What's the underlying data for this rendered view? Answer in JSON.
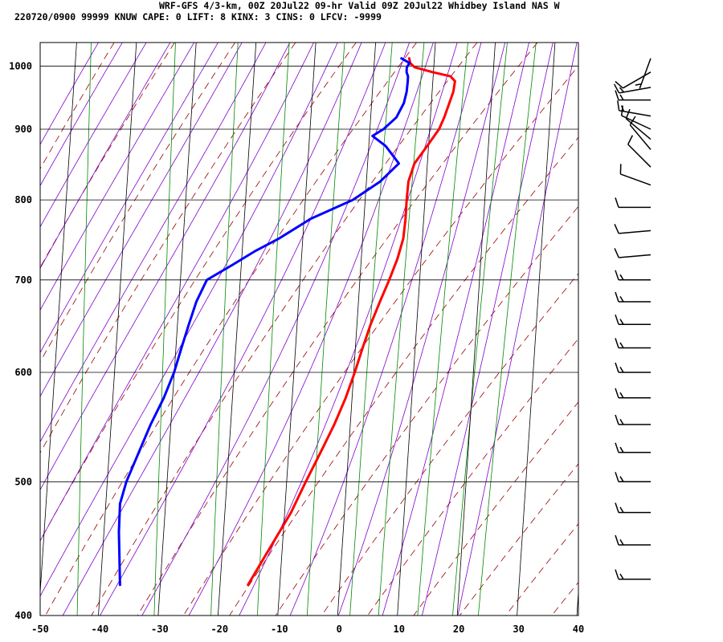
{
  "header": {
    "line1": "WRF-GFS 4/3-km, 00Z 20Jul22 09-hr Valid 09Z 20Jul22 Whidbey Island NAS W",
    "line2": "220720/0900 99999  KNUW    CAPE:     0 LIFT:     8 KINX:     3 CINS:     0 LFCV: -9999"
  },
  "colors": {
    "temperature": "#ff0000",
    "dewpoint": "#0000ff",
    "dry_adiabat": "#990000",
    "moist_adiabat": "#8000cc",
    "mixing_ratio": "#008800",
    "grid": "#000000"
  },
  "chart_data": {
    "type": "line",
    "chart_kind": "skew-T log-P sounding",
    "xlim": [
      -50,
      40
    ],
    "plim": [
      1040,
      400
    ],
    "x_ticks": [
      "-50",
      "-40",
      "-30",
      "-20",
      "-10",
      "0",
      "10",
      "20",
      "30",
      "40"
    ],
    "p_ticks": [
      "400",
      "500",
      "600",
      "700",
      "800",
      "900",
      "1000"
    ],
    "grid": true,
    "series": [
      {
        "key": "temperature",
        "points": [
          [
            1013,
            11.8
          ],
          [
            1005,
            11.9
          ],
          [
            998,
            12.6
          ],
          [
            990,
            15.5
          ],
          [
            983,
            18.5
          ],
          [
            975,
            19.2
          ],
          [
            958,
            18.8
          ],
          [
            940,
            18.0
          ],
          [
            918,
            17.0
          ],
          [
            900,
            16.0
          ],
          [
            875,
            13.8
          ],
          [
            850,
            11.5
          ],
          [
            825,
            10.3
          ],
          [
            800,
            9.8
          ],
          [
            775,
            9.4
          ],
          [
            750,
            8.8
          ],
          [
            725,
            7.6
          ],
          [
            700,
            6.0
          ],
          [
            675,
            4.2
          ],
          [
            650,
            2.4
          ],
          [
            625,
            0.8
          ],
          [
            600,
            -0.8
          ],
          [
            575,
            -2.6
          ],
          [
            550,
            -4.8
          ],
          [
            525,
            -7.4
          ],
          [
            500,
            -10.2
          ],
          [
            475,
            -13.0
          ],
          [
            450,
            -16.6
          ],
          [
            421,
            -21.0
          ]
        ]
      },
      {
        "key": "dewpoint",
        "points": [
          [
            1013,
            10.5
          ],
          [
            1005,
            11.8
          ],
          [
            998,
            11.3
          ],
          [
            990,
            11.2
          ],
          [
            983,
            11.4
          ],
          [
            975,
            11.3
          ],
          [
            958,
            11.0
          ],
          [
            940,
            10.4
          ],
          [
            918,
            9.0
          ],
          [
            900,
            6.7
          ],
          [
            890,
            4.8
          ],
          [
            875,
            6.9
          ],
          [
            850,
            8.9
          ],
          [
            825,
            5.6
          ],
          [
            800,
            0.8
          ],
          [
            775,
            -6.5
          ],
          [
            750,
            -12.0
          ],
          [
            735,
            -16.0
          ],
          [
            718,
            -20.0
          ],
          [
            700,
            -24.5
          ],
          [
            675,
            -26.5
          ],
          [
            650,
            -28.0
          ],
          [
            625,
            -29.5
          ],
          [
            600,
            -31.0
          ],
          [
            575,
            -33.0
          ],
          [
            550,
            -35.5
          ],
          [
            525,
            -37.8
          ],
          [
            500,
            -40.2
          ],
          [
            482,
            -41.5
          ],
          [
            460,
            -42.0
          ],
          [
            440,
            -42.2
          ],
          [
            421,
            -42.4
          ]
        ]
      }
    ],
    "wind_barbs": [
      {
        "p": 1013,
        "dir": 200,
        "spd": 5
      },
      {
        "p": 990,
        "dir": 240,
        "spd": 10
      },
      {
        "p": 965,
        "dir": 260,
        "spd": 15
      },
      {
        "p": 945,
        "dir": 270,
        "spd": 15
      },
      {
        "p": 920,
        "dir": 280,
        "spd": 15
      },
      {
        "p": 900,
        "dir": 295,
        "spd": 10
      },
      {
        "p": 885,
        "dir": 310,
        "spd": 10
      },
      {
        "p": 870,
        "dir": 320,
        "spd": 10
      },
      {
        "p": 845,
        "dir": 315,
        "spd": 10
      },
      {
        "p": 820,
        "dir": 290,
        "spd": 10
      },
      {
        "p": 790,
        "dir": 270,
        "spd": 10
      },
      {
        "p": 760,
        "dir": 265,
        "spd": 10
      },
      {
        "p": 730,
        "dir": 265,
        "spd": 10
      },
      {
        "p": 700,
        "dir": 270,
        "spd": 15
      },
      {
        "p": 675,
        "dir": 270,
        "spd": 15
      },
      {
        "p": 650,
        "dir": 270,
        "spd": 15
      },
      {
        "p": 625,
        "dir": 270,
        "spd": 15
      },
      {
        "p": 600,
        "dir": 270,
        "spd": 15
      },
      {
        "p": 575,
        "dir": 270,
        "spd": 15
      },
      {
        "p": 550,
        "dir": 270,
        "spd": 15
      },
      {
        "p": 525,
        "dir": 270,
        "spd": 15
      },
      {
        "p": 500,
        "dir": 270,
        "spd": 15
      },
      {
        "p": 475,
        "dir": 270,
        "spd": 15
      },
      {
        "p": 450,
        "dir": 270,
        "spd": 15
      },
      {
        "p": 425,
        "dir": 270,
        "spd": 15
      }
    ]
  }
}
